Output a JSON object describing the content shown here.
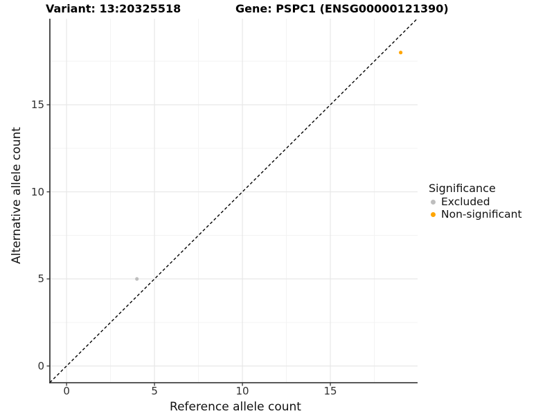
{
  "titles": {
    "variant": "Variant: 13:20325518",
    "gene": "Gene: PSPC1 (ENSG00000121390)"
  },
  "axes": {
    "x": {
      "label": "Reference allele count"
    },
    "y": {
      "label": "Alternative allele count"
    }
  },
  "legend": {
    "title": "Significance",
    "position": "right",
    "items": [
      {
        "label": "Excluded",
        "color": "#BEBEBE"
      },
      {
        "label": "Non-significant",
        "color": "#FFA500"
      }
    ]
  },
  "chart_data": {
    "type": "scatter",
    "title": "Variant: 13:20325518 — Gene: PSPC1 (ENSG00000121390)",
    "xlabel": "Reference allele count",
    "ylabel": "Alternative allele count",
    "xlim": [
      -0.95,
      19.96
    ],
    "ylim": [
      -0.96,
      19.94
    ],
    "x_ticks": [
      0,
      5,
      10,
      15
    ],
    "y_ticks": [
      0,
      5,
      10,
      15
    ],
    "minor_tick_step": 2.5,
    "grid": true,
    "legend_title": "Significance",
    "legend_position": "right",
    "reference_line": {
      "type": "identity",
      "equation": "y = x",
      "style": "dashed",
      "color": "#000000"
    },
    "series": [
      {
        "name": "Excluded",
        "color": "#BEBEBE",
        "points": [
          [
            4,
            5
          ]
        ]
      },
      {
        "name": "Non-significant",
        "color": "#FFA500",
        "points": [
          [
            19,
            18
          ]
        ]
      }
    ]
  },
  "style": {
    "grid_major_color": "#e7e7e7",
    "grid_minor_color": "#f3f3f3",
    "axis_line_color": "#222222",
    "tick_mark_color": "#333333",
    "tick_label_color": "#303030"
  }
}
